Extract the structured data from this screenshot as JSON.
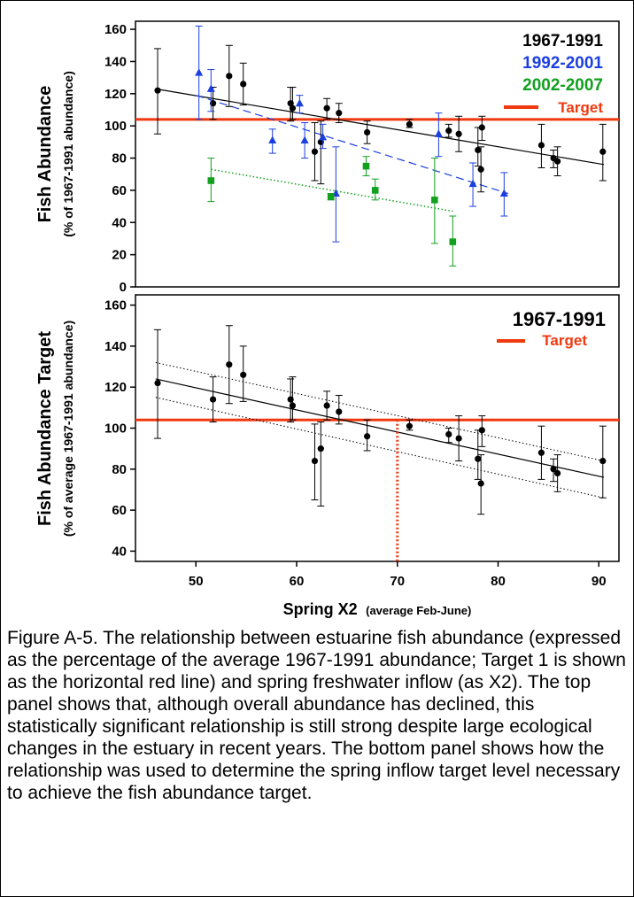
{
  "caption": "Figure A-5. The relationship between estuarine fish abundance (expressed as the percentage of the average 1967-1991 abundance; Target 1 is shown as the horizontal red line) and spring freshwater inflow (as X2).  The top panel shows that, although overall abundance has declined, this statistically significant relationship is still strong despite large ecological changes in the estuary in recent years.  The bottom panel shows how the relationship was used to determine the spring inflow target level necessary to achieve the fish abundance target.",
  "colors": {
    "series1": "#000000",
    "series2": "#1c3fe0",
    "series3": "#12a01f",
    "target": "#f0390f"
  },
  "chart_data": [
    {
      "type": "scatter",
      "panel": "top",
      "ylabel": "Fish Abundance",
      "ylabel_sub": "(% of 1967-1991 abundance)",
      "xlim": [
        44,
        92
      ],
      "ylim": [
        0,
        165
      ],
      "yticks": [
        0,
        20,
        40,
        60,
        80,
        100,
        120,
        140,
        160
      ],
      "target": {
        "name": "Target",
        "y": 104
      },
      "series": [
        {
          "name": "1967-1991",
          "marker": "circle",
          "color": "#000000",
          "trend": {
            "x": [
              46,
              90.5
            ],
            "y": [
              123,
              76
            ],
            "style": "solid"
          },
          "points": [
            {
              "x": 46.2,
              "y": 122,
              "lo": 95,
              "hi": 148
            },
            {
              "x": 51.7,
              "y": 114,
              "lo": 104,
              "hi": 124
            },
            {
              "x": 53.3,
              "y": 131,
              "lo": 112,
              "hi": 150
            },
            {
              "x": 54.7,
              "y": 126,
              "lo": 113,
              "hi": 139
            },
            {
              "x": 59.4,
              "y": 114,
              "lo": 103,
              "hi": 124
            },
            {
              "x": 59.6,
              "y": 111,
              "lo": 104,
              "hi": 124
            },
            {
              "x": 61.8,
              "y": 84,
              "lo": 66,
              "hi": 102
            },
            {
              "x": 62.4,
              "y": 90,
              "lo": 64,
              "hi": 103
            },
            {
              "x": 63,
              "y": 111,
              "lo": 104,
              "hi": 117
            },
            {
              "x": 64.2,
              "y": 108,
              "lo": 102,
              "hi": 114
            },
            {
              "x": 67,
              "y": 96,
              "lo": 89,
              "hi": 103
            },
            {
              "x": 71.2,
              "y": 101,
              "lo": 99,
              "hi": 104
            },
            {
              "x": 75.1,
              "y": 97,
              "lo": 93,
              "hi": 101
            },
            {
              "x": 76.1,
              "y": 95,
              "lo": 84,
              "hi": 106
            },
            {
              "x": 78,
              "y": 85,
              "lo": 75,
              "hi": 99
            },
            {
              "x": 78.3,
              "y": 73,
              "lo": 59,
              "hi": 87
            },
            {
              "x": 78.4,
              "y": 99,
              "lo": 91,
              "hi": 106
            },
            {
              "x": 84.3,
              "y": 88,
              "lo": 74,
              "hi": 101
            },
            {
              "x": 85.5,
              "y": 80,
              "lo": 74,
              "hi": 85
            },
            {
              "x": 85.9,
              "y": 78,
              "lo": 69,
              "hi": 87
            },
            {
              "x": 90.4,
              "y": 84,
              "lo": 66,
              "hi": 101
            }
          ]
        },
        {
          "name": "1992-2001",
          "marker": "triangle",
          "color": "#1c3fe0",
          "trend": {
            "x": [
              50,
              81
            ],
            "y": [
              119,
              58
            ],
            "style": "dashed"
          },
          "points": [
            {
              "x": 50.3,
              "y": 133,
              "lo": 104,
              "hi": 162
            },
            {
              "x": 51.5,
              "y": 123,
              "lo": 109,
              "hi": 135
            },
            {
              "x": 57.6,
              "y": 91,
              "lo": 83,
              "hi": 98
            },
            {
              "x": 60.3,
              "y": 114,
              "lo": 108,
              "hi": 119
            },
            {
              "x": 60.8,
              "y": 91,
              "lo": 80,
              "hi": 102
            },
            {
              "x": 62.6,
              "y": 93,
              "lo": 86,
              "hi": 101
            },
            {
              "x": 63.9,
              "y": 58,
              "lo": 28,
              "hi": 87
            },
            {
              "x": 74.1,
              "y": 95,
              "lo": 81,
              "hi": 108
            },
            {
              "x": 77.5,
              "y": 64,
              "lo": 50,
              "hi": 77
            },
            {
              "x": 80.6,
              "y": 58,
              "lo": 44,
              "hi": 71
            }
          ]
        },
        {
          "name": "2002-2007",
          "marker": "square",
          "color": "#12a01f",
          "trend": {
            "x": [
              51.5,
              75.5
            ],
            "y": [
              73,
              47
            ],
            "style": "dotted"
          },
          "points": [
            {
              "x": 51.5,
              "y": 66,
              "lo": 53,
              "hi": 80
            },
            {
              "x": 63.4,
              "y": 56,
              "lo": 54,
              "hi": 58
            },
            {
              "x": 66.9,
              "y": 75,
              "lo": 69,
              "hi": 81
            },
            {
              "x": 67.8,
              "y": 60,
              "lo": 54,
              "hi": 67
            },
            {
              "x": 73.7,
              "y": 54,
              "lo": 27,
              "hi": 80
            },
            {
              "x": 75.5,
              "y": 28,
              "lo": 13,
              "hi": 44
            }
          ]
        }
      ]
    },
    {
      "type": "scatter",
      "panel": "bottom",
      "ylabel": "Fish Abundance Target",
      "ylabel_sub": "(% of  average 1967-1991 abundance)",
      "xlabel": "Spring X2",
      "xlabel_sub": "(average Feb-June)",
      "xlim": [
        44,
        92
      ],
      "ylim": [
        35,
        165
      ],
      "xticks": [
        50,
        60,
        70,
        80,
        90
      ],
      "yticks": [
        40,
        60,
        80,
        100,
        120,
        140,
        160
      ],
      "target": {
        "name": "Target",
        "y": 104,
        "x_at_target": 70
      },
      "series": [
        {
          "name": "1967-1991",
          "marker": "circle",
          "color": "#000000",
          "trend": {
            "x": [
              46,
              90.5
            ],
            "y": [
              124,
              76
            ],
            "style": "solid"
          },
          "ci_upper": {
            "x": [
              46,
              90.5
            ],
            "y": [
              132,
              84
            ]
          },
          "ci_lower": {
            "x": [
              46,
              90.5
            ],
            "y": [
              115,
              66
            ]
          },
          "points": [
            {
              "x": 46.2,
              "y": 122,
              "lo": 95,
              "hi": 148
            },
            {
              "x": 51.7,
              "y": 114,
              "lo": 103,
              "hi": 125
            },
            {
              "x": 53.3,
              "y": 131,
              "lo": 112,
              "hi": 150
            },
            {
              "x": 54.7,
              "y": 126,
              "lo": 113,
              "hi": 140
            },
            {
              "x": 59.4,
              "y": 114,
              "lo": 103,
              "hi": 124
            },
            {
              "x": 59.6,
              "y": 111,
              "lo": 104,
              "hi": 125
            },
            {
              "x": 61.8,
              "y": 84,
              "lo": 65,
              "hi": 102
            },
            {
              "x": 62.4,
              "y": 90,
              "lo": 62,
              "hi": 103
            },
            {
              "x": 63,
              "y": 111,
              "lo": 104,
              "hi": 118
            },
            {
              "x": 64.2,
              "y": 108,
              "lo": 102,
              "hi": 116
            },
            {
              "x": 67,
              "y": 96,
              "lo": 89,
              "hi": 104
            },
            {
              "x": 71.2,
              "y": 101,
              "lo": 99,
              "hi": 104
            },
            {
              "x": 75.1,
              "y": 97,
              "lo": 93,
              "hi": 100
            },
            {
              "x": 76.1,
              "y": 95,
              "lo": 84,
              "hi": 106
            },
            {
              "x": 78,
              "y": 85,
              "lo": 75,
              "hi": 99
            },
            {
              "x": 78.3,
              "y": 73,
              "lo": 58,
              "hi": 87
            },
            {
              "x": 78.4,
              "y": 99,
              "lo": 91,
              "hi": 106
            },
            {
              "x": 84.3,
              "y": 88,
              "lo": 75,
              "hi": 101
            },
            {
              "x": 85.5,
              "y": 80,
              "lo": 74,
              "hi": 85
            },
            {
              "x": 85.9,
              "y": 78,
              "lo": 69,
              "hi": 87
            },
            {
              "x": 90.4,
              "y": 84,
              "lo": 66,
              "hi": 101
            }
          ]
        }
      ]
    }
  ]
}
